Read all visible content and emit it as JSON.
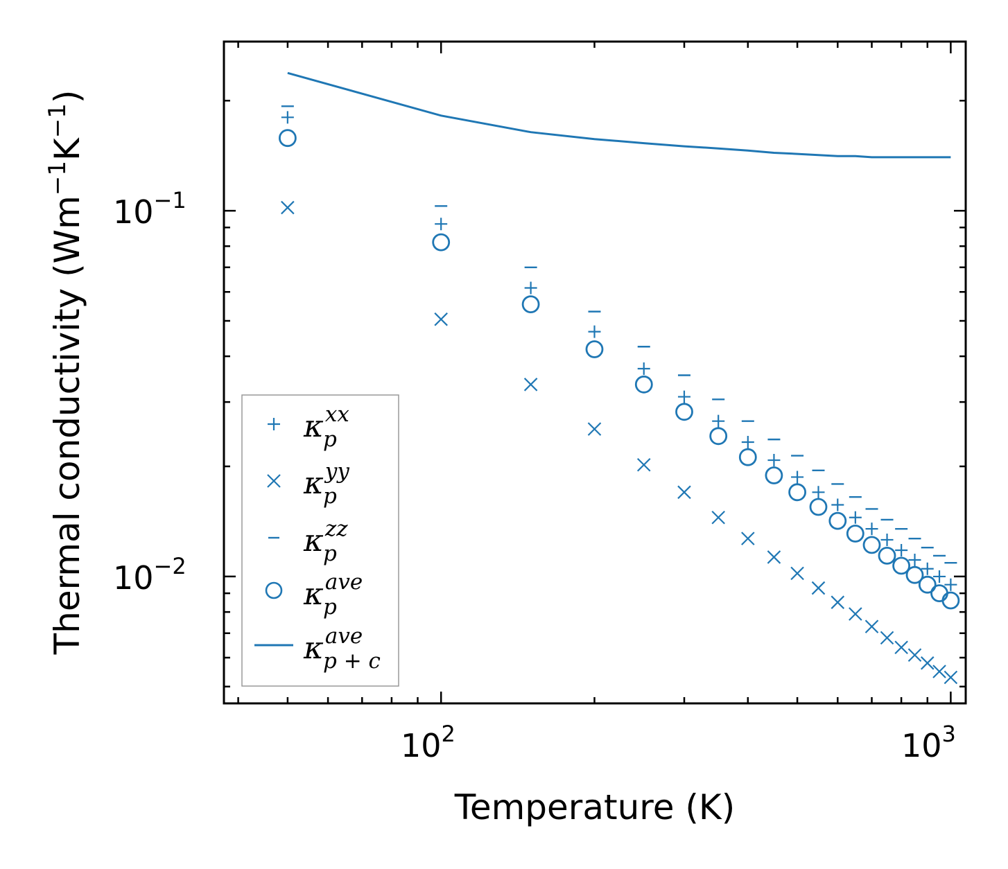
{
  "chart_data": {
    "type": "scatter",
    "xscale": "log",
    "yscale": "log",
    "xlim": [
      37.5,
      1070
    ],
    "ylim": [
      0.0045,
      0.29
    ],
    "xlabel": "Temperature (K)",
    "ylabel": {
      "text": "Thermal conductivity (Wm",
      "exp1": "−1",
      "mid": "K",
      "exp2": "−1",
      "end": ")"
    },
    "x_ticks": [
      {
        "base": "10",
        "exp": "2",
        "value": 100
      },
      {
        "base": "10",
        "exp": "3",
        "value": 1000
      }
    ],
    "y_ticks": [
      {
        "base": "10",
        "exp": "−1",
        "value": 0.1
      },
      {
        "base": "10",
        "exp": "−2",
        "value": 0.01
      }
    ],
    "x": [
      50,
      100,
      150,
      200,
      250,
      300,
      350,
      400,
      450,
      500,
      550,
      600,
      650,
      700,
      750,
      800,
      850,
      900,
      950,
      1000
    ],
    "series": [
      {
        "name": "kappa_p^xx",
        "symbol": "κ",
        "sub": "p",
        "sup": "xx",
        "marker": "plus",
        "values": [
          0.18,
          0.092,
          0.0615,
          0.0467,
          0.037,
          0.031,
          0.0266,
          0.0233,
          0.0208,
          0.0187,
          0.017,
          0.0157,
          0.0145,
          0.0135,
          0.0126,
          0.0118,
          0.0111,
          0.0105,
          0.01,
          0.0095
        ]
      },
      {
        "name": "kappa_p^yy",
        "symbol": "κ",
        "sub": "p",
        "sup": "yy",
        "marker": "x",
        "values": [
          0.102,
          0.0505,
          0.0335,
          0.0253,
          0.0202,
          0.017,
          0.0145,
          0.0127,
          0.0113,
          0.0102,
          0.0093,
          0.0085,
          0.0079,
          0.0073,
          0.0068,
          0.0064,
          0.0061,
          0.0058,
          0.0055,
          0.0053
        ]
      },
      {
        "name": "kappa_p^zz",
        "symbol": "κ",
        "sub": "p",
        "sup": "zz",
        "marker": "hline",
        "values": [
          0.193,
          0.103,
          0.07,
          0.053,
          0.0425,
          0.0355,
          0.0305,
          0.0266,
          0.0237,
          0.0214,
          0.0195,
          0.0179,
          0.0165,
          0.0153,
          0.0143,
          0.0135,
          0.0127,
          0.012,
          0.0114,
          0.0109
        ]
      },
      {
        "name": "kappa_p^ave",
        "symbol": "κ",
        "sub": "p",
        "sup": "ave",
        "marker": "circle",
        "values": [
          0.158,
          0.082,
          0.0555,
          0.0418,
          0.0335,
          0.0282,
          0.0242,
          0.0212,
          0.0189,
          0.017,
          0.0155,
          0.0142,
          0.0131,
          0.0122,
          0.0114,
          0.0107,
          0.0101,
          0.0095,
          0.009,
          0.0086
        ]
      },
      {
        "name": "kappa_p+c^ave",
        "symbol": "κ",
        "sub": "p + c",
        "sup": "ave",
        "marker": "line",
        "values": [
          0.238,
          0.182,
          0.164,
          0.157,
          0.153,
          0.15,
          0.148,
          0.146,
          0.144,
          0.143,
          0.142,
          0.141,
          0.141,
          0.14,
          0.14,
          0.14,
          0.14,
          0.14,
          0.14,
          0.14
        ]
      }
    ],
    "legend_position": "lower-left",
    "color": "#1f77b4"
  }
}
